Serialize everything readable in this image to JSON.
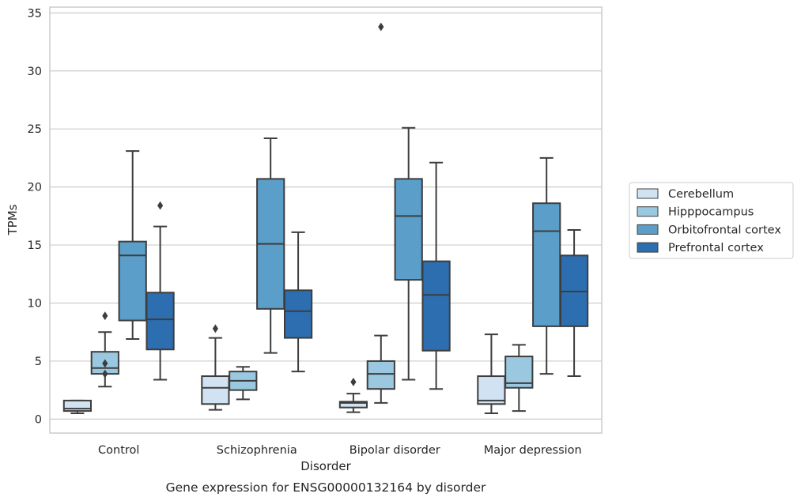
{
  "chart_data": {
    "type": "box",
    "title": "Gene expression for ENSG00000132164 by disorder",
    "xlabel": "Disorder",
    "ylabel": "TPMs",
    "ylim": [
      -1.2,
      35.5
    ],
    "yticks": [
      0,
      5,
      10,
      15,
      20,
      25,
      30,
      35
    ],
    "grid": true,
    "legend_position": "right",
    "categories": [
      "Control",
      "Schizophrenia",
      "Bipolar disorder",
      "Major depression"
    ],
    "series": [
      {
        "name": "Cerebellum",
        "color": "#d1e2f3",
        "boxes": [
          {
            "whislo": 0.5,
            "q1": 0.7,
            "med": 0.9,
            "q3": 1.6,
            "whishi": 1.6,
            "fliers": []
          },
          {
            "whislo": 0.8,
            "q1": 1.3,
            "med": 2.7,
            "q3": 3.7,
            "whishi": 7.0,
            "fliers": [
              7.8
            ]
          },
          {
            "whislo": 0.6,
            "q1": 1.0,
            "med": 1.4,
            "q3": 1.5,
            "whishi": 2.2,
            "fliers": [
              3.2
            ]
          },
          {
            "whislo": 0.5,
            "q1": 1.3,
            "med": 1.6,
            "q3": 3.7,
            "whishi": 7.3,
            "fliers": []
          }
        ]
      },
      {
        "name": "Hipppocampus",
        "color": "#9ac8e0",
        "boxes": [
          {
            "whislo": 2.8,
            "q1": 3.9,
            "med": 4.4,
            "q3": 5.8,
            "whishi": 7.5,
            "fliers": [
              8.9,
              4.8,
              3.9
            ]
          },
          {
            "whislo": 1.7,
            "q1": 2.5,
            "med": 3.3,
            "q3": 4.1,
            "whishi": 4.5,
            "fliers": []
          },
          {
            "whislo": 1.4,
            "q1": 2.6,
            "med": 3.9,
            "q3": 5.0,
            "whishi": 7.2,
            "fliers": [
              33.8
            ]
          },
          {
            "whislo": 0.7,
            "q1": 2.7,
            "med": 3.1,
            "q3": 5.4,
            "whishi": 6.4,
            "fliers": []
          }
        ]
      },
      {
        "name": "Orbitofrontal cortex",
        "color": "#5a9ec9",
        "boxes": [
          {
            "whislo": 6.9,
            "q1": 8.5,
            "med": 14.1,
            "q3": 15.3,
            "whishi": 23.1,
            "fliers": []
          },
          {
            "whislo": 5.7,
            "q1": 9.5,
            "med": 15.1,
            "q3": 20.7,
            "whishi": 24.2,
            "fliers": []
          },
          {
            "whislo": 3.4,
            "q1": 12.0,
            "med": 17.5,
            "q3": 20.7,
            "whishi": 25.1,
            "fliers": []
          },
          {
            "whislo": 3.9,
            "q1": 8.0,
            "med": 16.2,
            "q3": 18.6,
            "whishi": 22.5,
            "fliers": []
          }
        ]
      },
      {
        "name": "Prefrontal cortex",
        "color": "#2d6eb0",
        "boxes": [
          {
            "whislo": 3.4,
            "q1": 6.0,
            "med": 8.6,
            "q3": 10.9,
            "whishi": 16.6,
            "fliers": [
              18.4
            ]
          },
          {
            "whislo": 4.1,
            "q1": 7.0,
            "med": 9.3,
            "q3": 11.1,
            "whishi": 16.1,
            "fliers": []
          },
          {
            "whislo": 2.6,
            "q1": 5.9,
            "med": 10.7,
            "q3": 13.6,
            "whishi": 22.1,
            "fliers": []
          },
          {
            "whislo": 3.7,
            "q1": 8.0,
            "med": 11.0,
            "q3": 14.1,
            "whishi": 16.3,
            "fliers": []
          }
        ]
      }
    ]
  }
}
